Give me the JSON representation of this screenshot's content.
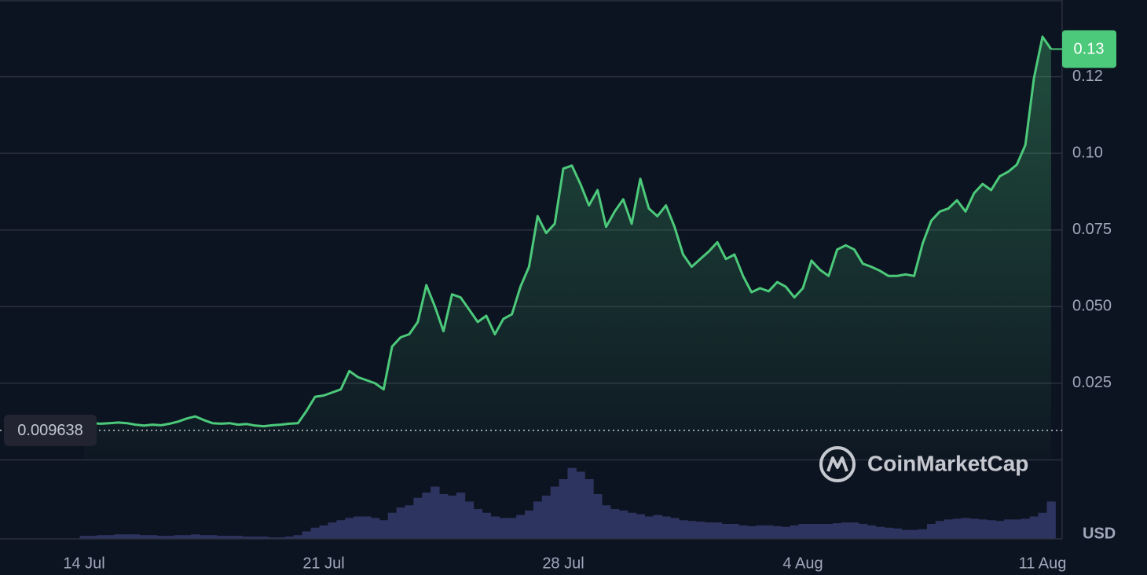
{
  "chart_data": {
    "type": "line",
    "categories": [
      "14 Jul",
      null,
      null,
      null,
      null,
      null,
      null,
      null,
      null,
      null,
      null,
      null,
      null,
      null,
      null,
      null,
      null,
      null,
      null,
      null,
      null,
      null,
      null,
      null,
      null,
      null,
      null,
      null,
      "21 Jul",
      null,
      null,
      null,
      null,
      null,
      null,
      null,
      null,
      null,
      null,
      null,
      null,
      null,
      null,
      null,
      null,
      null,
      null,
      null,
      null,
      null,
      null,
      null,
      null,
      null,
      null,
      null,
      "28 Jul",
      null,
      null,
      null,
      null,
      null,
      null,
      null,
      null,
      null,
      null,
      null,
      null,
      null,
      null,
      null,
      null,
      null,
      null,
      null,
      null,
      null,
      null,
      null,
      null,
      null,
      null,
      null,
      "4 Aug",
      null,
      null,
      null,
      null,
      null,
      null,
      null,
      null,
      null,
      null,
      null,
      null,
      null,
      null,
      null,
      null,
      null,
      null,
      null,
      null,
      null,
      null,
      null,
      null,
      null,
      null,
      null,
      "11 Aug",
      null
    ],
    "values": [
      0.0115,
      0.012,
      0.0118,
      0.012,
      0.0122,
      0.012,
      0.0115,
      0.0112,
      0.0115,
      0.0113,
      0.0118,
      0.0125,
      0.0135,
      0.0142,
      0.013,
      0.012,
      0.0118,
      0.012,
      0.0115,
      0.0117,
      0.0112,
      0.011,
      0.0113,
      0.0115,
      0.0118,
      0.012,
      0.016,
      0.0206,
      0.021,
      0.022,
      0.023,
      0.029,
      0.027,
      0.026,
      0.025,
      0.023,
      0.037,
      0.04,
      0.041,
      0.045,
      0.057,
      0.05,
      0.042,
      0.054,
      0.053,
      0.049,
      0.045,
      0.047,
      0.041,
      0.046,
      0.0475,
      0.0565,
      0.063,
      0.0795,
      0.074,
      0.077,
      0.095,
      0.096,
      0.09,
      0.083,
      0.088,
      0.076,
      0.081,
      0.085,
      0.077,
      0.0917,
      0.082,
      0.0795,
      0.083,
      0.076,
      0.067,
      0.063,
      0.0655,
      0.068,
      0.071,
      0.0655,
      0.067,
      0.06,
      0.0547,
      0.056,
      0.055,
      0.058,
      0.0565,
      0.053,
      0.056,
      0.065,
      0.062,
      0.06,
      0.0686,
      0.07,
      0.0686,
      0.064,
      0.063,
      0.0617,
      0.06,
      0.06,
      0.0605,
      0.06,
      0.0706,
      0.078,
      0.081,
      0.082,
      0.0847,
      0.081,
      0.087,
      0.09,
      0.088,
      0.0925,
      0.094,
      0.0963,
      0.1027,
      0.1245,
      0.138,
      0.134
    ],
    "color": "#4cc97a",
    "volume": {
      "color": "#2e3460",
      "values": [
        4,
        4,
        5,
        5,
        6,
        6,
        6,
        5,
        5,
        4,
        4,
        5,
        5,
        6,
        5,
        5,
        4,
        4,
        4,
        3,
        3,
        3,
        2,
        2,
        3,
        5,
        10,
        15,
        18,
        22,
        25,
        28,
        30,
        30,
        28,
        25,
        35,
        42,
        45,
        55,
        62,
        70,
        60,
        58,
        62,
        50,
        40,
        35,
        30,
        28,
        28,
        32,
        38,
        50,
        58,
        70,
        80,
        95,
        90,
        80,
        60,
        45,
        40,
        38,
        35,
        33,
        30,
        32,
        30,
        28,
        25,
        24,
        23,
        22,
        22,
        20,
        20,
        18,
        17,
        18,
        18,
        17,
        16,
        18,
        20,
        20,
        20,
        20,
        21,
        22,
        22,
        20,
        18,
        16,
        15,
        14,
        12,
        12,
        13,
        20,
        24,
        26,
        27,
        28,
        27,
        26,
        25,
        24,
        26,
        26,
        27,
        30,
        35,
        50
      ]
    },
    "ylim": [
      0,
      0.15
    ],
    "yticks": [
      0.025,
      {
        "value": 0.05,
        "label": "0.050"
      },
      0.075,
      {
        "value": 0.1,
        "label": "0.10"
      },
      {
        "value": 0.125,
        "label": "0.12"
      }
    ],
    "grid": true,
    "reference_value": 0.009638,
    "last_value_label": {
      "value": 0.134,
      "label": "0.13"
    },
    "currency": "USD",
    "watermark": "CoinMarketCap"
  }
}
